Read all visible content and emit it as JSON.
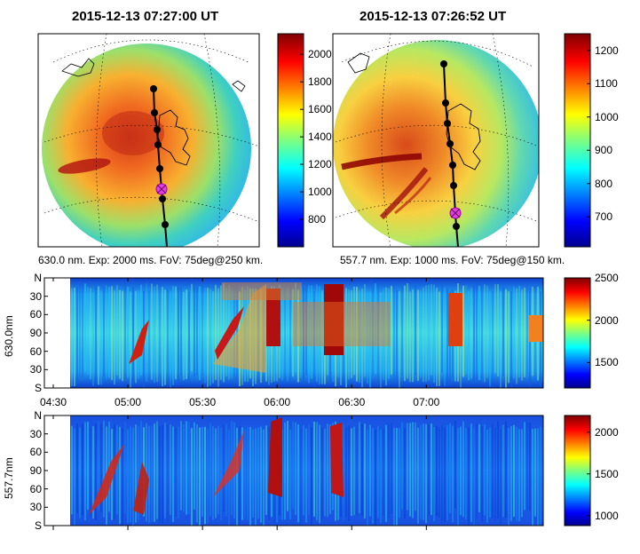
{
  "panels": {
    "sky_630": {
      "title": "2015-12-13 07:27:00 UT",
      "caption": "630.0 nm. Exp: 2000 ms. FoV: 75deg@250 km.",
      "colorbar": {
        "ticks": [
          800,
          1000,
          1200,
          1400,
          1600,
          1800,
          2000
        ],
        "range": [
          600,
          2150
        ]
      }
    },
    "sky_557": {
      "title": "2015-12-13 07:26:52 UT",
      "caption": "557.7 nm. Exp: 1000 ms. FoV: 75deg@150 km.",
      "colorbar": {
        "ticks": [
          700,
          800,
          900,
          1000,
          1100,
          1200
        ],
        "range": [
          610,
          1250
        ]
      }
    }
  },
  "chart_data": [
    {
      "type": "heatmap",
      "name": "keogram-630",
      "ylabel": "630.0nm",
      "y_ticks": [
        "N",
        "30",
        "60",
        "90",
        "60",
        "30",
        "S"
      ],
      "x_ticks": [
        "04:30",
        "05:00",
        "05:30",
        "06:00",
        "06:30",
        "07:00"
      ],
      "colorbar": {
        "ticks": [
          1500,
          2000,
          2500
        ],
        "range": [
          1200,
          2500
        ]
      }
    },
    {
      "type": "heatmap",
      "name": "keogram-557",
      "ylabel": "557.7nm",
      "y_ticks": [
        "N",
        "30",
        "60",
        "90",
        "60",
        "30",
        "S"
      ],
      "x_ticks": [],
      "colorbar": {
        "ticks": [
          1000,
          1500,
          2000
        ],
        "range": [
          880,
          2200
        ]
      }
    }
  ],
  "colors": {
    "marker_track": "#000000",
    "marker_position": "#e040e0"
  }
}
